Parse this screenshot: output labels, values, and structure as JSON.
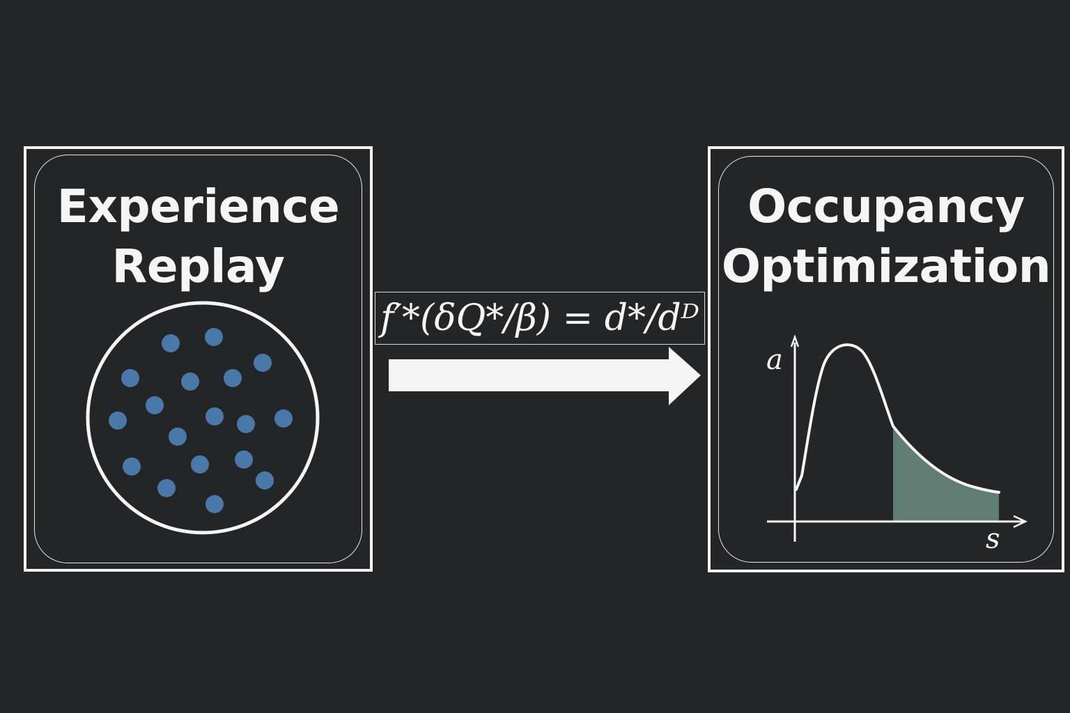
{
  "diagram": {
    "left_panel": {
      "title_line1": "Experience",
      "title_line2": "Replay",
      "icon": "replay-buffer-circle-of-dots",
      "dot_color": "#4a78a8"
    },
    "formula": "f′*(δQ*/β) = d*/dᴰ",
    "arrow": {
      "direction": "right",
      "color": "#f5f5f5"
    },
    "right_panel": {
      "title_line1": "Occupancy",
      "title_line2": "Optimization",
      "icon": "occupancy-curve-plot",
      "plot": {
        "y_label": "a",
        "x_label": "s",
        "shade_color": "#5f7d72"
      }
    },
    "colors": {
      "background": "#242527",
      "foreground": "#f5f5f5"
    }
  }
}
